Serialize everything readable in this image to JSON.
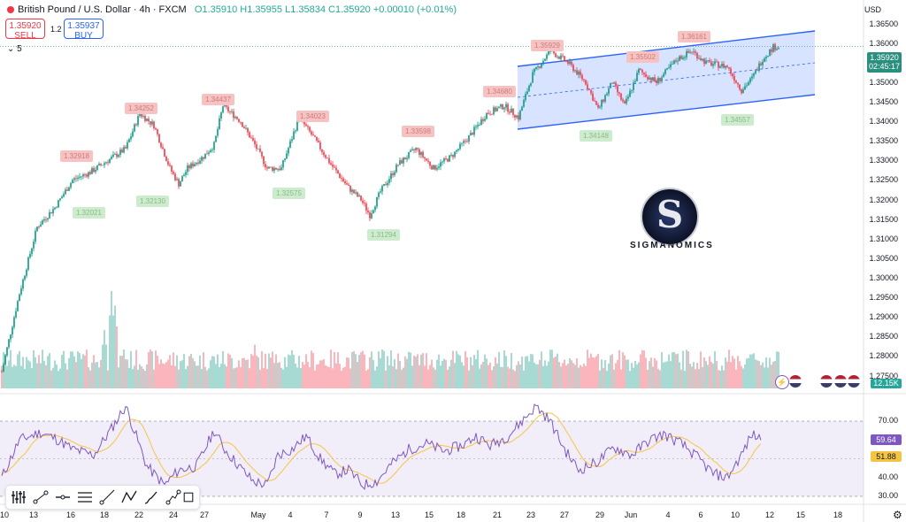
{
  "header": {
    "symbol": "British Pound / U.S. Dollar · 4h · FXCM",
    "open": "O1.35910",
    "high": "H1.35955",
    "low": "L1.35834",
    "close": "C1.35920",
    "change": "+0.00010 (+0.01%)",
    "currency": "USD"
  },
  "trade": {
    "sell_price": "1.35920",
    "sell_label": "SELL",
    "spread": "1.2",
    "buy_price": "1.35937",
    "buy_label": "BUY"
  },
  "indicator_toggle": "5",
  "price_axis": [
    "1.36500",
    "1.36000",
    "1.35500",
    "1.35000",
    "1.34500",
    "1.34000",
    "1.33500",
    "1.33000",
    "1.32500",
    "1.32000",
    "1.31500",
    "1.31000",
    "1.30500",
    "1.30000",
    "1.29500",
    "1.29000",
    "1.28500",
    "1.28000",
    "1.27500"
  ],
  "current_price": {
    "value": "1.35920",
    "timer": "02:45:17"
  },
  "volume_tag": "12.15K",
  "rsi_axis": [
    "70.00",
    "60.00",
    "50.00",
    "40.00",
    "30.00"
  ],
  "rsi_tags": {
    "rsi": "59.64",
    "ma": "51.88"
  },
  "x_labels": [
    "10",
    "13",
    "16",
    "18",
    "22",
    "24",
    "27",
    "May",
    "4",
    "7",
    "9",
    "13",
    "15",
    "18",
    "21",
    "23",
    "27",
    "29",
    "Jun",
    "4",
    "6",
    "10",
    "12",
    "15",
    "18"
  ],
  "price_labels": {
    "highs": [
      "1.32918",
      "1.34252",
      "1.34437",
      "1.34023",
      "1.33598",
      "1.34680",
      "1.35929",
      "1.35502",
      "1.36161"
    ],
    "lows": [
      "1.32021",
      "1.32130",
      "1.32575",
      "1.31294",
      "1.34148",
      "1.34557"
    ]
  },
  "brand": "SIGMANOMICS",
  "colors": {
    "up": "#089981",
    "down": "#f23645",
    "channel": "#2962ff",
    "rsi": "#7e57c2",
    "rsi_ma": "#f5c542"
  },
  "chart_data": {
    "type": "candlestick",
    "title": "British Pound / U.S. Dollar · 4h · FXCM",
    "ylim": [
      1.27,
      1.367
    ],
    "anchors": [
      [
        0,
        1.276
      ],
      [
        10,
        1.296
      ],
      [
        20,
        1.313
      ],
      [
        30,
        1.318
      ],
      [
        40,
        1.325
      ],
      [
        50,
        1.327
      ],
      [
        60,
        1.33
      ],
      [
        70,
        1.333
      ],
      [
        78,
        1.342
      ],
      [
        86,
        1.339
      ],
      [
        95,
        1.328
      ],
      [
        100,
        1.324
      ],
      [
        105,
        1.328
      ],
      [
        114,
        1.331
      ],
      [
        120,
        1.334
      ],
      [
        125,
        1.344
      ],
      [
        135,
        1.34
      ],
      [
        143,
        1.334
      ],
      [
        150,
        1.328
      ],
      [
        158,
        1.328
      ],
      [
        168,
        1.341
      ],
      [
        176,
        1.336
      ],
      [
        186,
        1.329
      ],
      [
        196,
        1.323
      ],
      [
        203,
        1.32
      ],
      [
        208,
        1.316
      ],
      [
        214,
        1.322
      ],
      [
        224,
        1.329
      ],
      [
        234,
        1.333
      ],
      [
        244,
        1.328
      ],
      [
        254,
        1.331
      ],
      [
        264,
        1.336
      ],
      [
        274,
        1.342
      ],
      [
        284,
        1.344
      ],
      [
        292,
        1.341
      ],
      [
        300,
        1.352
      ],
      [
        310,
        1.358
      ],
      [
        320,
        1.355
      ],
      [
        330,
        1.35
      ],
      [
        337,
        1.343
      ],
      [
        345,
        1.35
      ],
      [
        352,
        1.344
      ],
      [
        360,
        1.353
      ],
      [
        370,
        1.35
      ],
      [
        382,
        1.356
      ],
      [
        390,
        1.358
      ],
      [
        398,
        1.355
      ],
      [
        410,
        1.354
      ],
      [
        418,
        1.348
      ],
      [
        424,
        1.351
      ],
      [
        430,
        1.356
      ],
      [
        436,
        1.359
      ]
    ],
    "volume_spikes": [
      [
        58,
        0.6
      ],
      [
        62,
        1.0
      ],
      [
        64,
        0.85
      ],
      [
        69,
        0.4
      ],
      [
        143,
        0.45
      ],
      [
        155,
        0.35
      ],
      [
        215,
        0.4
      ],
      [
        300,
        0.35
      ]
    ],
    "rsi_anchors": [
      [
        0,
        40
      ],
      [
        10,
        60
      ],
      [
        22,
        64
      ],
      [
        32,
        60
      ],
      [
        40,
        55
      ],
      [
        52,
        52
      ],
      [
        62,
        66
      ],
      [
        70,
        78
      ],
      [
        76,
        62
      ],
      [
        82,
        46
      ],
      [
        92,
        36
      ],
      [
        100,
        44
      ],
      [
        110,
        46
      ],
      [
        120,
        65
      ],
      [
        126,
        55
      ],
      [
        136,
        44
      ],
      [
        142,
        38
      ],
      [
        150,
        36
      ],
      [
        156,
        52
      ],
      [
        164,
        55
      ],
      [
        172,
        62
      ],
      [
        180,
        50
      ],
      [
        188,
        42
      ],
      [
        196,
        44
      ],
      [
        204,
        36
      ],
      [
        212,
        38
      ],
      [
        220,
        47
      ],
      [
        230,
        55
      ],
      [
        240,
        58
      ],
      [
        250,
        54
      ],
      [
        260,
        57
      ],
      [
        268,
        62
      ],
      [
        276,
        57
      ],
      [
        286,
        62
      ],
      [
        294,
        70
      ],
      [
        302,
        78
      ],
      [
        310,
        70
      ],
      [
        318,
        55
      ],
      [
        326,
        44
      ],
      [
        336,
        48
      ],
      [
        346,
        56
      ],
      [
        356,
        52
      ],
      [
        366,
        60
      ],
      [
        374,
        63
      ],
      [
        384,
        58
      ],
      [
        394,
        50
      ],
      [
        402,
        42
      ],
      [
        410,
        40
      ],
      [
        418,
        52
      ],
      [
        424,
        63
      ],
      [
        428,
        61
      ]
    ]
  }
}
